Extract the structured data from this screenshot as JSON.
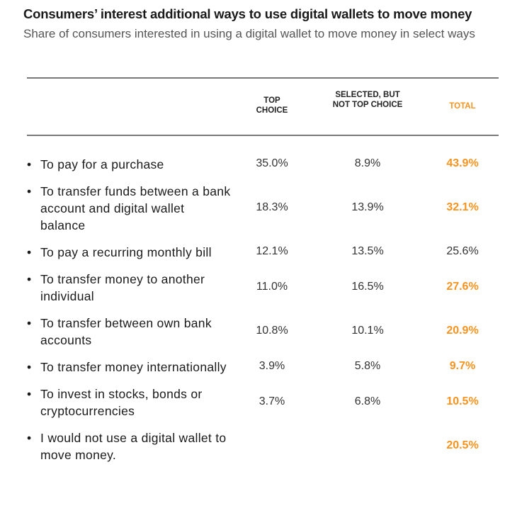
{
  "chart_data": {
    "type": "table",
    "title": "Consumers’ interest additional ways to use digital wallets to move money",
    "subtitle": "Share of consumers interested in using a digital wallet to move money in select ways",
    "columns": [
      "TOP CHOICE",
      "SELECTED, BUT NOT TOP CHOICE",
      "TOTAL"
    ],
    "highlight_color": "#f7931e",
    "rows": [
      {
        "label": "To pay for a purchase",
        "top": "35.0%",
        "selected": "8.9%",
        "total": "43.9%",
        "highlight": true
      },
      {
        "label": "To transfer funds between a bank account and digital wallet balance",
        "top": "18.3%",
        "selected": "13.9%",
        "total": "32.1%",
        "highlight": true
      },
      {
        "label": "To pay a recurring monthly bill",
        "top": "12.1%",
        "selected": "13.5%",
        "total": "25.6%",
        "highlight": false
      },
      {
        "label": "To transfer money to another individual",
        "top": "11.0%",
        "selected": "16.5%",
        "total": "27.6%",
        "highlight": true
      },
      {
        "label": "To transfer between own bank accounts",
        "top": "10.8%",
        "selected": "10.1%",
        "total": "20.9%",
        "highlight": true
      },
      {
        "label": "To transfer money internationally",
        "top": "3.9%",
        "selected": "5.8%",
        "total": "9.7%",
        "highlight": true
      },
      {
        "label": "To invest in stocks, bonds or cryptocurrencies",
        "top": "3.7%",
        "selected": "6.8%",
        "total": "10.5%",
        "highlight": true
      },
      {
        "label": "I would not use a digital wallet to move money.",
        "top": "",
        "selected": "",
        "total": "20.5%",
        "highlight": true
      }
    ]
  }
}
